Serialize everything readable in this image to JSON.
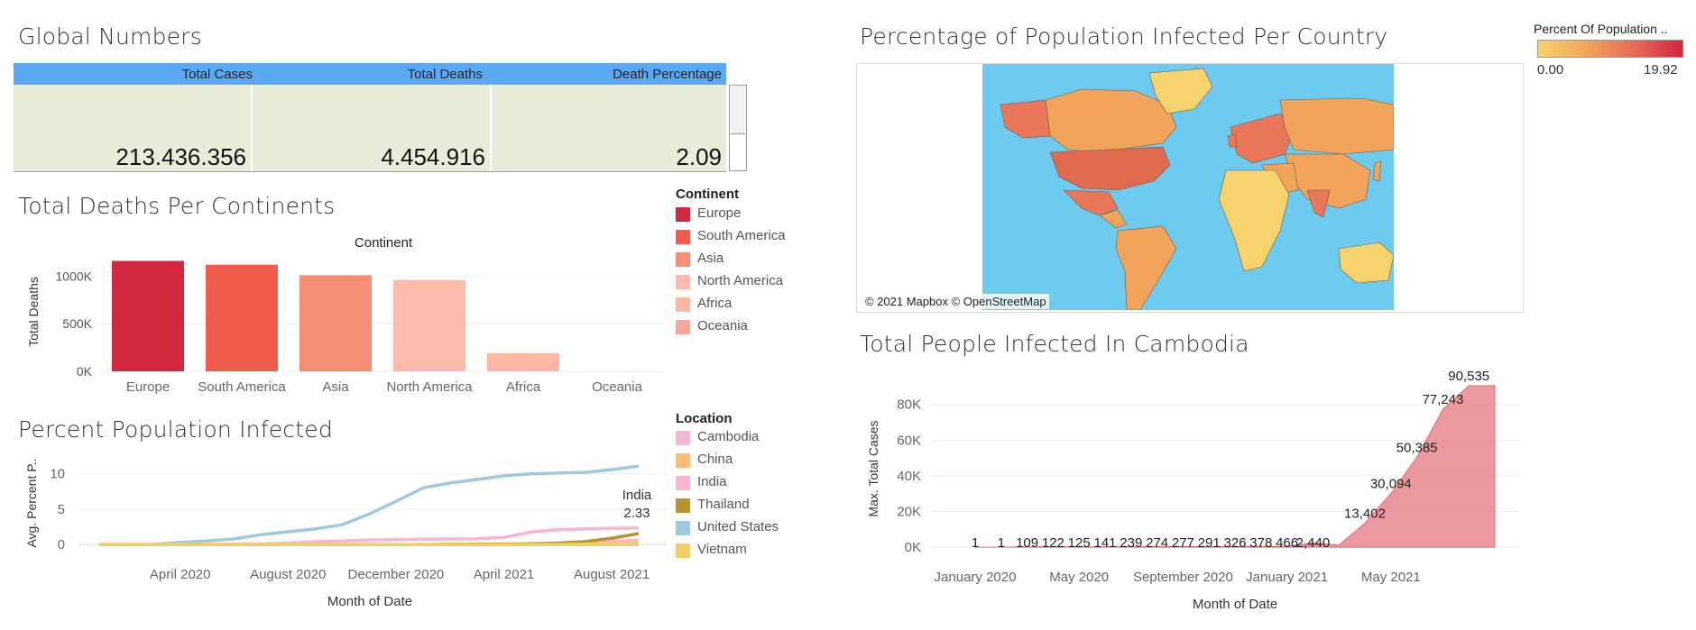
{
  "global_numbers": {
    "title": "Global Numbers",
    "headers": [
      "Total Cases",
      "Total Deaths",
      "Death Percentage"
    ],
    "values": [
      "213.436.356",
      "4.454.916",
      "2.09"
    ]
  },
  "map": {
    "title": "Percentage of Population Infected Per Country",
    "credit": "© 2021 Mapbox © OpenStreetMap",
    "color_scale": {
      "title": "Percent Of Population ..",
      "min": "0.00",
      "max": "19.92",
      "colors": [
        "#f6d36c",
        "#d2263f"
      ]
    },
    "colors": {
      "sea": "#6ecbf0",
      "low": "#f6d36c",
      "mid": "#f2a55a",
      "high": "#e9785a",
      "us": "#e06a4e"
    }
  },
  "chart_data": [
    {
      "id": "deaths_by_continent",
      "type": "bar",
      "title": "Total Deaths Per Continents",
      "top_label": "Continent",
      "ylabel": "Total Deaths",
      "categories": [
        "Europe",
        "South America",
        "Asia",
        "North America",
        "Africa",
        "Oceania"
      ],
      "values": [
        1160000,
        1120000,
        1010000,
        960000,
        190000,
        1200
      ],
      "colors": [
        "#d4283f",
        "#f15c4d",
        "#f78d74",
        "#fdbbab",
        "#fcb8a5",
        "#f9a796"
      ],
      "yticks": [
        0,
        500000,
        1000000
      ],
      "ytick_labels": [
        "0K",
        "500K",
        "1000K"
      ],
      "ylim": [
        0,
        1250000
      ],
      "legend": {
        "title": "Continent",
        "placement": "right"
      }
    },
    {
      "id": "percent_infected",
      "type": "line",
      "title": "Percent Population Infected",
      "xlabel": "Month of Date",
      "ylabel": "Avg. Percent P..",
      "x": [
        "2020-01",
        "2020-02",
        "2020-03",
        "2020-04",
        "2020-05",
        "2020-06",
        "2020-07",
        "2020-08",
        "2020-09",
        "2020-10",
        "2020-11",
        "2020-12",
        "2021-01",
        "2021-02",
        "2021-03",
        "2021-04",
        "2021-05",
        "2021-06",
        "2021-07",
        "2021-08",
        "2021-09"
      ],
      "xtick_labels": [
        "April 2020",
        "August 2020",
        "December 2020",
        "April 2021",
        "August 2021"
      ],
      "xtick_positions": [
        "2020-04",
        "2020-08",
        "2020-12",
        "2021-04",
        "2021-08"
      ],
      "yticks": [
        0,
        5,
        10
      ],
      "ylim": [
        -1,
        12
      ],
      "series": [
        {
          "name": "Cambodia",
          "color": "#f7b6d2",
          "values": [
            0,
            0,
            0,
            0,
            0,
            0,
            0,
            0,
            0,
            0,
            0,
            0,
            0,
            0,
            0,
            0,
            0.01,
            0.03,
            0.3,
            0.5,
            0.55
          ]
        },
        {
          "name": "China",
          "color": "#ffbb78",
          "values": [
            0.003,
            0.005,
            0.006,
            0.006,
            0.006,
            0.006,
            0.006,
            0.006,
            0.006,
            0.006,
            0.006,
            0.006,
            0.007,
            0.007,
            0.007,
            0.007,
            0.007,
            0.007,
            0.007,
            0.007,
            0.007
          ]
        },
        {
          "name": "India",
          "color": "#f7b6d2",
          "values": [
            0,
            0,
            0,
            0.01,
            0.01,
            0.04,
            0.1,
            0.2,
            0.4,
            0.5,
            0.65,
            0.7,
            0.75,
            0.77,
            0.8,
            1.0,
            1.75,
            2.1,
            2.2,
            2.3,
            2.33
          ]
        },
        {
          "name": "Thailand",
          "color": "#b5952e",
          "values": [
            0,
            0,
            0,
            0,
            0,
            0,
            0,
            0,
            0,
            0,
            0,
            0,
            0,
            0.03,
            0.04,
            0.05,
            0.1,
            0.2,
            0.4,
            0.9,
            1.55
          ]
        },
        {
          "name": "United States",
          "color": "#9ecae1",
          "values": [
            0,
            0,
            0,
            0.3,
            0.5,
            0.8,
            1.4,
            1.8,
            2.2,
            2.8,
            4.3,
            6.1,
            8.0,
            8.7,
            9.2,
            9.7,
            10.0,
            10.1,
            10.2,
            10.6,
            11.1
          ]
        },
        {
          "name": "Vietnam",
          "color": "#f5ce5d",
          "values": [
            0,
            0,
            0,
            0,
            0,
            0,
            0,
            0,
            0,
            0,
            0,
            0,
            0,
            0,
            0,
            0,
            0,
            0.01,
            0.05,
            0.15,
            0.25
          ]
        }
      ],
      "annotation": {
        "series": "India",
        "text": "India",
        "value": "2.33"
      },
      "legend": {
        "title": "Location",
        "placement": "right"
      }
    },
    {
      "id": "cambodia_cases",
      "type": "area",
      "title": "Total People Infected In Cambodia",
      "xlabel": "Month of Date",
      "ylabel": "Max. Total Cases",
      "color": "#e8868e",
      "x": [
        "2020-01",
        "2020-02",
        "2020-03",
        "2020-04",
        "2020-05",
        "2020-06",
        "2020-07",
        "2020-08",
        "2020-09",
        "2020-10",
        "2020-11",
        "2020-12",
        "2021-01",
        "2021-02",
        "2021-03",
        "2021-04",
        "2021-05",
        "2021-06",
        "2021-07",
        "2021-08",
        "2021-09"
      ],
      "values": [
        1,
        1,
        109,
        122,
        125,
        141,
        239,
        274,
        277,
        291,
        326,
        378,
        466,
        2440,
        1200,
        13402,
        30094,
        50385,
        77243,
        90535,
        90535
      ],
      "labels": [
        "1",
        "1",
        "109",
        "122",
        "125",
        "141",
        "239",
        "274",
        "277",
        "291",
        "326",
        "378",
        "466",
        "2,440",
        "",
        "13,402",
        "30,094",
        "50,385",
        "77,243",
        "90,535",
        ""
      ],
      "xtick_labels": [
        "January 2020",
        "May 2020",
        "September 2020",
        "January 2021",
        "May 2021"
      ],
      "xtick_positions": [
        "2020-01",
        "2020-05",
        "2020-09",
        "2021-01",
        "2021-05"
      ],
      "yticks": [
        0,
        20000,
        40000,
        60000,
        80000
      ],
      "ytick_labels": [
        "0K",
        "20K",
        "40K",
        "60K",
        "80K"
      ],
      "ylim": [
        -3000,
        92000
      ]
    }
  ]
}
